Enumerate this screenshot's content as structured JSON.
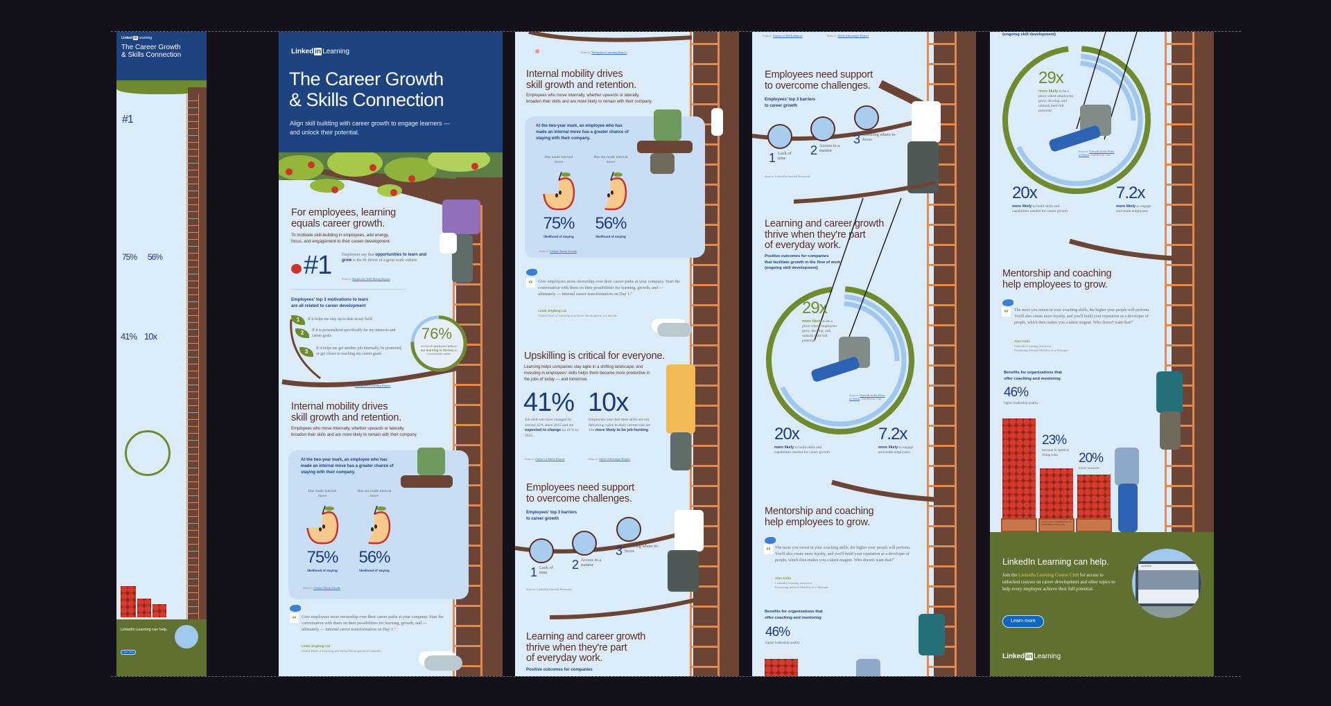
{
  "brand": {
    "linked": "Linked",
    "in": "in",
    "learning": "Learning"
  },
  "colors": {
    "header_blue": "#1d4380",
    "background": "#dcebf8",
    "heading_brown": "#5a2c24",
    "navy": "#1a3a7c",
    "green": "#6f8a2f",
    "footer_green": "#5f7031",
    "trunk": "#6b4436",
    "ladder": "#e38a4e",
    "ring_blue": "#9fc8ec"
  },
  "hero": {
    "title_l1": "The Career Growth",
    "title_l2": "& Skills Connection",
    "subtitle_l1": "Align skill building with career growth to engage learners —",
    "subtitle_l2": "and unlock their potential."
  },
  "s1": {
    "heading": [
      "For employees, learning",
      "equals career growth."
    ],
    "body": [
      "To motivate skill-building in employees, add energy,",
      "focus, and engagement to their career development."
    ],
    "stat": "#1",
    "stat_pre": "Employees say that",
    "stat_bold": "opportunities to learn and grow",
    "stat_post": "is the #1 driver of a great work culture.",
    "source_label": "Source:",
    "source_link": "Employee Well-Being Report",
    "motivations_heading": [
      "Employees' top 3 motivations to learn",
      "are all related to career development"
    ],
    "motivations": [
      {
        "num": "1",
        "text": "If it helps me stay up to date in my field"
      },
      {
        "num": "2",
        "text": "If it is personalized specifically for my interests and career goals"
      },
      {
        "num": "3",
        "text": "If it helps me get another job internally, be promoted, or get closer to reaching my career goals"
      }
    ],
    "genz": {
      "value": "76%",
      "fraction": 0.76,
      "pre": "of Gen Z employees believe that",
      "bold": "learning is the key",
      "post": "to a successful career."
    },
    "source2_link": "Workplace Learning Report"
  },
  "s2": {
    "heading": [
      "Internal mobility drives",
      "skill growth and retention."
    ],
    "body": [
      "Employees who move internally, whether upwards or laterally,",
      "broaden their skills and are more likely to remain with their company."
    ],
    "box_text": "At the two-year mark, an employee who has made an internal move has a greater chance of staying with their company.",
    "columns": [
      {
        "label": "Has made internal move",
        "value": "75%",
        "fraction": 0.75,
        "caption": "likelihood of staying"
      },
      {
        "label": "Has not made internal move",
        "value": "56%",
        "fraction": 0.56,
        "caption": "likelihood of staying"
      }
    ],
    "source_link": "Global Talent Trends",
    "quote": "Give employees more ownership over their career paths at your company. Start the conversation with them on their possibilities for learning, growth, and — ultimately — internal career transformation on Day 1.\"",
    "author": "Linda Jingfang Cai",
    "author_title": "Global Head of Learning and Talent Development at LinkedIn"
  },
  "s3": {
    "heading": "Upskilling is critical for everyone.",
    "body": "Learning helps companies stay agile in a shifting landscape, and investing in employees' skills helps them become more productive in the jobs of today — and tomorrow.",
    "stats": [
      {
        "value": "41%",
        "pre": "Job skill sets have changed by around 25% since 2015 and are",
        "bold": "expected to change",
        "post": "by 41% by 2025.",
        "source": "Future of Skills Report"
      },
      {
        "value": "10x",
        "pre": "Employees who feel their skills are not delivering value in their current role are 10x",
        "bold": "more likely to be job hunting",
        "post": ".",
        "source": "Skills Advantage Report"
      }
    ]
  },
  "s4": {
    "heading": [
      "Employees need support",
      "to overcome challenges."
    ],
    "subhead": [
      "Employees' top 3 barriers",
      "to career growth"
    ],
    "barriers": [
      {
        "num": "1",
        "label": "Lack of time",
        "icon": "hourglass"
      },
      {
        "num": "2",
        "label": "Access to a mentor",
        "icon": "mentor-conversation"
      },
      {
        "num": "3",
        "label": "Knowing where to focus",
        "icon": "bookshelf"
      }
    ],
    "source": "Source: LinkedIn Internal Research"
  },
  "s5": {
    "heading": [
      "Learning and career growth",
      "thrive when they're part",
      "of everyday work."
    ],
    "subhead": [
      "Positive outcomes for companies",
      "that facilitate growth in the flow of work",
      "(ongoing skill development)"
    ],
    "stats": [
      {
        "value": "29x",
        "number": 29,
        "bold": "more likely",
        "text": "to be a place where employees grow, develop, and unleash their full potential"
      },
      {
        "value": "20x",
        "number": 20,
        "bold": "more likely",
        "text": "to build skills and capabilities needed for career growth"
      },
      {
        "value": "7.2x",
        "number": 7.2,
        "bold": "more likely",
        "text": "to engage and retain employees"
      }
    ],
    "source_link": "Growth in the Flow of Work",
    "source_suffix": ", JoshBersin.com"
  },
  "s6": {
    "heading": [
      "Mentorship and coaching",
      "help employees to grow."
    ],
    "quote": "The more you invest in your coaching skills, the higher your people will perform. You'll also create more loyalty, and you'll build your reputation as a developer of people, which then makes you a talent magnet. Who doesn't want that?\"",
    "author": "Alan Cohn",
    "author_title": [
      "LinkedIn Learning instructor,",
      "Promoting Internal Mobility as a Manager"
    ],
    "benefits_heading": [
      "Benefits for organizations that",
      "offer coaching and mentoring"
    ],
    "stats": [
      {
        "value": "46%",
        "number": 46,
        "text": "higher leadership quality"
      },
      {
        "value": "23%",
        "number": 23,
        "text": "increase in speed at filling roles"
      },
      {
        "value": "20%",
        "number": 20,
        "text": "lower turnover"
      }
    ],
    "source": "Source: The Changing Face of Leadership, Forbes.com"
  },
  "footer": {
    "heading": "LinkedIn Learning can help.",
    "pre": "Join the",
    "link": "LinkedIn Learning Course Club",
    "post": "for access to unlocked courses on career development and other topics to help every employee achieve their full potential.",
    "button": "Learn more",
    "laptop_label": "LEARNING"
  }
}
